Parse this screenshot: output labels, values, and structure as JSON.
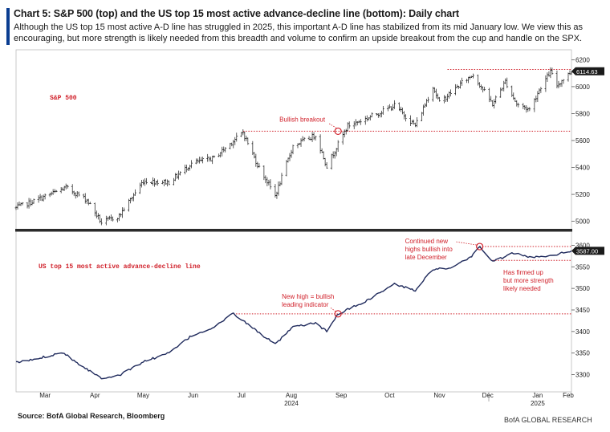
{
  "header": {
    "title": "Chart 5: S&P 500 (top) and the US top 15 most active advance-decline line (bottom): Daily chart",
    "subtitle": "Although the US top 15 most active A-D line has struggled in 2025, this important A-D line has stabilized from its mid January low. We view this as encouraging, but more strength is likely needed from this breadth and volume to confirm an upside breakout from the cup and handle on the SPX."
  },
  "footer": {
    "source": "Source: BofA Global Research, Bloomberg",
    "brand": "BofA GLOBAL RESEARCH"
  },
  "colors": {
    "price": "#1a1a1a",
    "ad_line": "#1f2a5c",
    "annotation": "#d0202a",
    "accent": "#0a3d91"
  },
  "chart_data": [
    {
      "type": "bar",
      "series_label": "S&P 500",
      "x_range": [
        "2024-02-26",
        "2025-02-05"
      ],
      "ylim": [
        4950,
        6250
      ],
      "yticks": [
        5000,
        5200,
        5400,
        5600,
        5800,
        6000,
        6200
      ],
      "last_value_label": "6114.63",
      "resistance_level": 6128,
      "breakout_level": 5669,
      "anchors": [
        [
          "2024-02-26",
          5100
        ],
        [
          "2024-03-08",
          5150
        ],
        [
          "2024-03-28",
          5250
        ],
        [
          "2024-04-10",
          5160
        ],
        [
          "2024-04-19",
          4990
        ],
        [
          "2024-04-30",
          5040
        ],
        [
          "2024-05-15",
          5300
        ],
        [
          "2024-05-31",
          5290
        ],
        [
          "2024-06-14",
          5430
        ],
        [
          "2024-06-28",
          5470
        ],
        [
          "2024-07-16",
          5660
        ],
        [
          "2024-07-25",
          5420
        ],
        [
          "2024-08-05",
          5190
        ],
        [
          "2024-08-16",
          5560
        ],
        [
          "2024-08-30",
          5640
        ],
        [
          "2024-09-06",
          5410
        ],
        [
          "2024-09-19",
          5710
        ],
        [
          "2024-09-30",
          5760
        ],
        [
          "2024-10-18",
          5860
        ],
        [
          "2024-10-31",
          5710
        ],
        [
          "2024-11-11",
          6000
        ],
        [
          "2024-11-15",
          5880
        ],
        [
          "2024-11-29",
          6030
        ],
        [
          "2024-12-06",
          6090
        ],
        [
          "2024-12-18",
          5870
        ],
        [
          "2024-12-26",
          6040
        ],
        [
          "2025-01-02",
          5870
        ],
        [
          "2025-01-10",
          5830
        ],
        [
          "2025-01-17",
          6000
        ],
        [
          "2025-01-23",
          6110
        ],
        [
          "2025-01-27",
          6010
        ],
        [
          "2025-02-05",
          6114
        ]
      ],
      "annotations": [
        {
          "text": "Bullish breakout",
          "x": "2024-09-13",
          "y": 5669
        }
      ]
    },
    {
      "type": "line",
      "series_label": "US top 15 most active advance-decline line",
      "ylim": [
        3275,
        3625
      ],
      "yticks": [
        3300,
        3350,
        3400,
        3450,
        3500,
        3550,
        3600
      ],
      "last_value_label": "3587.00",
      "prior_high_level": 3441,
      "recent_high_level": 3597,
      "support_level": 3565,
      "anchors": [
        [
          "2024-02-26",
          3328
        ],
        [
          "2024-03-08",
          3335
        ],
        [
          "2024-03-26",
          3352
        ],
        [
          "2024-04-05",
          3325
        ],
        [
          "2024-04-19",
          3292
        ],
        [
          "2024-05-01",
          3300
        ],
        [
          "2024-05-15",
          3330
        ],
        [
          "2024-05-31",
          3350
        ],
        [
          "2024-06-14",
          3390
        ],
        [
          "2024-06-28",
          3410
        ],
        [
          "2024-07-10",
          3442
        ],
        [
          "2024-07-25",
          3400
        ],
        [
          "2024-08-05",
          3370
        ],
        [
          "2024-08-16",
          3410
        ],
        [
          "2024-08-30",
          3420
        ],
        [
          "2024-09-06",
          3400
        ],
        [
          "2024-09-13",
          3441
        ],
        [
          "2024-09-30",
          3470
        ],
        [
          "2024-10-18",
          3510
        ],
        [
          "2024-10-31",
          3495
        ],
        [
          "2024-11-11",
          3545
        ],
        [
          "2024-11-22",
          3545
        ],
        [
          "2024-12-05",
          3575
        ],
        [
          "2024-12-10",
          3597
        ],
        [
          "2024-12-18",
          3562
        ],
        [
          "2024-12-31",
          3582
        ],
        [
          "2025-01-10",
          3572
        ],
        [
          "2025-01-24",
          3577
        ],
        [
          "2025-02-05",
          3587
        ]
      ],
      "annotations": [
        {
          "lines": [
            "New high = bullish",
            "leading indicator"
          ],
          "x": "2024-09-13",
          "y": 3441
        },
        {
          "lines": [
            "Continued new",
            "highs bullish into",
            "late December"
          ],
          "x": "2024-12-10",
          "y": 3597
        },
        {
          "lines": [
            "Has firmed up",
            "but more strength",
            "likely needed"
          ],
          "x": "2025-01-24",
          "y": 3565
        }
      ]
    }
  ],
  "x_axis": {
    "months": [
      {
        "label": "Mar",
        "date": "2024-03-15"
      },
      {
        "label": "Apr",
        "date": "2024-04-15"
      },
      {
        "label": "May",
        "date": "2024-05-15"
      },
      {
        "label": "Jun",
        "date": "2024-06-15"
      },
      {
        "label": "Jul",
        "date": "2024-07-15"
      },
      {
        "label": "Aug",
        "date": "2024-08-15"
      },
      {
        "label": "Sep",
        "date": "2024-09-15"
      },
      {
        "label": "Oct",
        "date": "2024-10-15"
      },
      {
        "label": "Nov",
        "date": "2024-11-15"
      },
      {
        "label": "Dec",
        "date": "2024-12-15"
      },
      {
        "label": "Jan",
        "date": "2025-01-15"
      },
      {
        "label": "Feb",
        "date": "2025-02-03"
      }
    ],
    "years": [
      {
        "label": "2024",
        "date": "2024-08-15"
      },
      {
        "label": "2025",
        "date": "2025-01-15"
      }
    ]
  }
}
